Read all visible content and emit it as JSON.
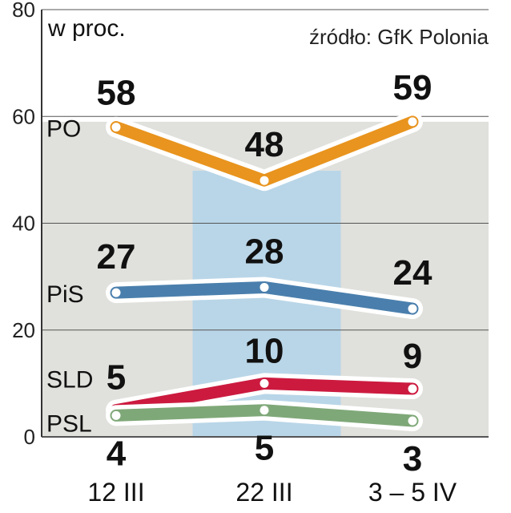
{
  "chart_data": {
    "type": "line",
    "unit_label": "w proc.",
    "source": "źródło: GfK Polonia",
    "categories": [
      "12 III",
      "22 III",
      "3 – 5 IV"
    ],
    "highlighted_category": "22 III",
    "y_ticks": [
      "0",
      "20",
      "40",
      "60",
      "80"
    ],
    "ylim": [
      0,
      80
    ],
    "grid": true,
    "series": [
      {
        "name": "PO",
        "values": [
          58,
          48,
          59
        ],
        "labels": [
          "58",
          "48",
          "59"
        ],
        "color": "#e8941e"
      },
      {
        "name": "PiS",
        "values": [
          27,
          28,
          24
        ],
        "labels": [
          "27",
          "28",
          "24"
        ],
        "color": "#4a7fad"
      },
      {
        "name": "SLD",
        "values": [
          5,
          10,
          9
        ],
        "labels": [
          "5",
          "10",
          "9"
        ],
        "color": "#cc1a3f"
      },
      {
        "name": "PSL",
        "values": [
          4,
          5,
          3
        ],
        "labels": [
          "4",
          "5",
          "3"
        ],
        "color": "#7fa878"
      }
    ],
    "colors": {
      "plot_background": "#e0e0dc",
      "highlight_band": "#b9d6e8",
      "axis": "#333333"
    }
  }
}
